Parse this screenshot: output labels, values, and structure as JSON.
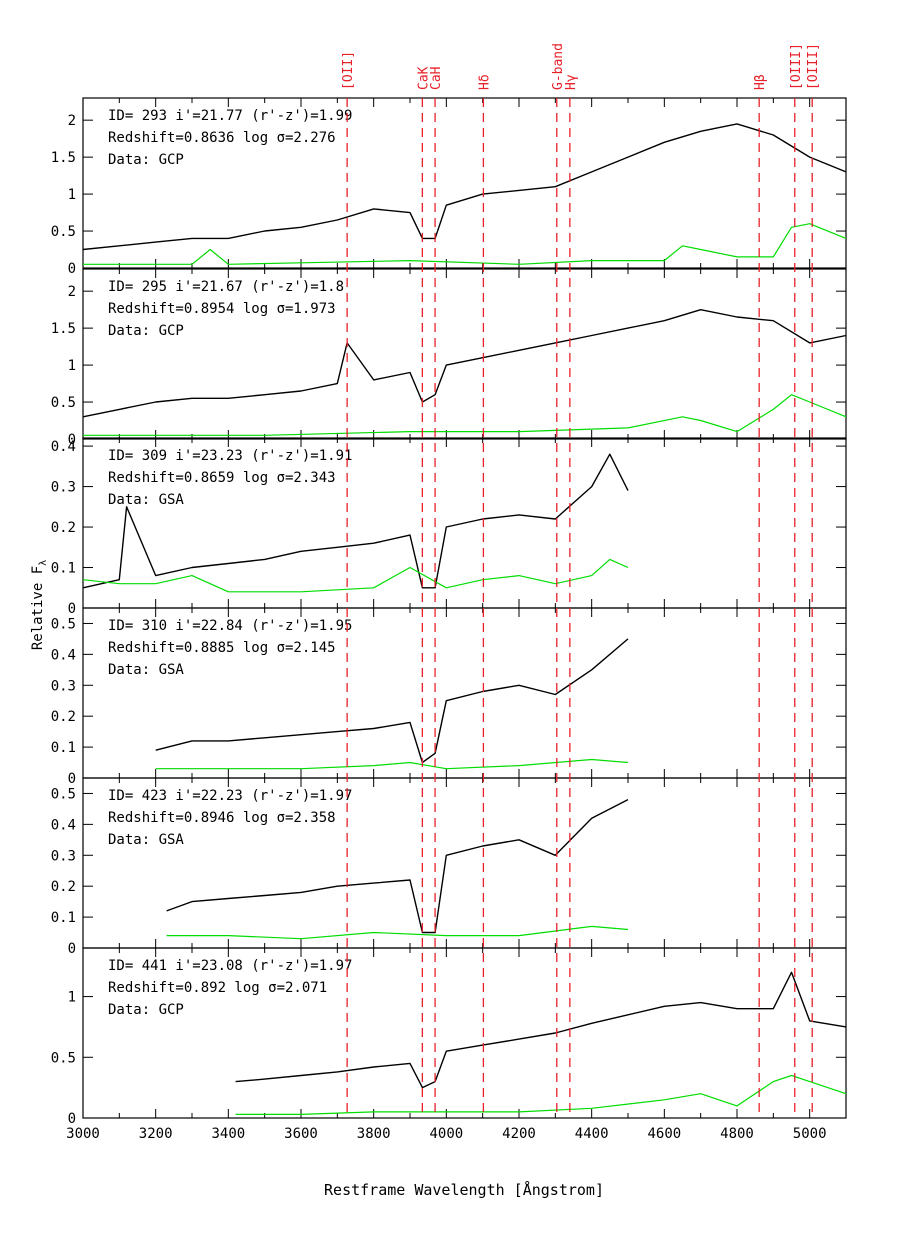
{
  "chart_data": {
    "type": "line",
    "xlabel": "Restframe Wavelength [Ångstrom]",
    "ylabel": "Relative F",
    "ylabel_sub": "λ",
    "xlim": [
      3000,
      5100
    ],
    "x_ticks": [
      3000,
      3200,
      3400,
      3600,
      3800,
      4000,
      4200,
      4400,
      4600,
      4800,
      5000
    ],
    "line_markers": [
      {
        "label": "[OII]",
        "wavelength": 3727
      },
      {
        "label": "CaK",
        "wavelength": 3934
      },
      {
        "label": "CaH",
        "wavelength": 3969
      },
      {
        "label": "Hδ",
        "wavelength": 4102
      },
      {
        "label": "G-band",
        "wavelength": 4304
      },
      {
        "label": "Hγ",
        "wavelength": 4340
      },
      {
        "label": "Hβ",
        "wavelength": 4861
      },
      {
        "label": "[OIII]",
        "wavelength": 4959
      },
      {
        "label": "[OIII]",
        "wavelength": 5007
      }
    ],
    "colors": {
      "spectrum": "#000000",
      "noise": "#00dd00",
      "marker": "#e8202a",
      "sky": "#3333ff"
    },
    "panels": [
      {
        "info": [
          "ID= 293   i'=21.77  (r'-z')=1.99",
          "Redshift=0.8636   log σ=2.276",
          "Data: GCP"
        ],
        "ylim": [
          0,
          2.3
        ],
        "yticks": [
          0,
          0.5,
          1,
          1.5,
          2
        ],
        "ytick_labels": [
          "0",
          "0.5",
          "1",
          "1.5",
          "2"
        ],
        "series": [
          {
            "role": "spectrum",
            "x": [
              3000,
              3100,
              3200,
              3300,
              3400,
              3500,
              3600,
              3700,
              3800,
              3900,
              3934,
              3969,
              4000,
              4100,
              4200,
              4300,
              4400,
              4500,
              4600,
              4700,
              4800,
              4900,
              5000,
              5100
            ],
            "y": [
              0.25,
              0.3,
              0.35,
              0.4,
              0.4,
              0.5,
              0.55,
              0.65,
              0.8,
              0.75,
              0.4,
              0.4,
              0.85,
              1.0,
              1.05,
              1.1,
              1.3,
              1.5,
              1.7,
              1.85,
              1.95,
              1.8,
              1.5,
              1.3
            ]
          },
          {
            "role": "noise",
            "x": [
              3000,
              3300,
              3350,
              3400,
              3600,
              3900,
              4200,
              4400,
              4600,
              4650,
              4700,
              4800,
              4900,
              4950,
              5000,
              5100
            ],
            "y": [
              0.05,
              0.05,
              0.25,
              0.05,
              0.07,
              0.1,
              0.05,
              0.1,
              0.1,
              0.3,
              0.25,
              0.15,
              0.15,
              0.55,
              0.6,
              0.4
            ]
          }
        ]
      },
      {
        "info": [
          "ID= 295   i'=21.67  (r'-z')=1.8",
          "Redshift=0.8954   log σ=1.973",
          "Data: GCP"
        ],
        "ylim": [
          0,
          2.3
        ],
        "yticks": [
          0,
          0.5,
          1,
          1.5,
          2
        ],
        "ytick_labels": [
          "0",
          "0.5",
          "1",
          "1.5",
          "2"
        ],
        "series": [
          {
            "role": "spectrum",
            "x": [
              3000,
              3100,
              3200,
              3300,
              3400,
              3500,
              3600,
              3700,
              3727,
              3800,
              3900,
              3934,
              3969,
              4000,
              4100,
              4200,
              4300,
              4400,
              4500,
              4600,
              4700,
              4800,
              4900,
              5000,
              5100
            ],
            "y": [
              0.3,
              0.4,
              0.5,
              0.55,
              0.55,
              0.6,
              0.65,
              0.75,
              1.3,
              0.8,
              0.9,
              0.5,
              0.6,
              1.0,
              1.1,
              1.2,
              1.3,
              1.4,
              1.5,
              1.6,
              1.75,
              1.65,
              1.6,
              1.3,
              1.4
            ]
          },
          {
            "role": "noise",
            "x": [
              3000,
              3500,
              3900,
              4200,
              4500,
              4650,
              4700,
              4800,
              4900,
              4950,
              5000,
              5100
            ],
            "y": [
              0.05,
              0.05,
              0.1,
              0.1,
              0.15,
              0.3,
              0.25,
              0.1,
              0.4,
              0.6,
              0.5,
              0.3
            ]
          }
        ]
      },
      {
        "info": [
          "ID= 309   i'=23.23  (r'-z')=1.91",
          "Redshift=0.8659   log σ=2.343",
          "Data: GSA"
        ],
        "ylim": [
          0,
          0.42
        ],
        "yticks": [
          0,
          0.1,
          0.2,
          0.3,
          0.4
        ],
        "ytick_labels": [
          "0",
          "0.1",
          "0.2",
          "0.3",
          "0.4"
        ],
        "series": [
          {
            "role": "spectrum",
            "x": [
              3000,
              3100,
              3120,
              3200,
              3300,
              3400,
              3500,
              3600,
              3700,
              3800,
              3900,
              3934,
              3969,
              4000,
              4100,
              4200,
              4300,
              4400,
              4450,
              4500
            ],
            "y": [
              0.05,
              0.07,
              0.25,
              0.08,
              0.1,
              0.11,
              0.12,
              0.14,
              0.15,
              0.16,
              0.18,
              0.05,
              0.05,
              0.2,
              0.22,
              0.23,
              0.22,
              0.3,
              0.38,
              0.29
            ]
          },
          {
            "role": "noise",
            "x": [
              3000,
              3100,
              3200,
              3300,
              3400,
              3600,
              3800,
              3900,
              4000,
              4100,
              4200,
              4300,
              4400,
              4450,
              4500
            ],
            "y": [
              0.07,
              0.06,
              0.06,
              0.08,
              0.04,
              0.04,
              0.05,
              0.1,
              0.05,
              0.07,
              0.08,
              0.06,
              0.08,
              0.12,
              0.1
            ]
          }
        ]
      },
      {
        "info": [
          "ID= 310   i'=22.84  (r'-z')=1.95",
          "Redshift=0.8885   log σ=2.145",
          "Data: GSA"
        ],
        "ylim": [
          0,
          0.55
        ],
        "yticks": [
          0,
          0.1,
          0.2,
          0.3,
          0.4,
          0.5
        ],
        "ytick_labels": [
          "0",
          "0.1",
          "0.2",
          "0.3",
          "0.4",
          "0.5"
        ],
        "series": [
          {
            "role": "spectrum",
            "x": [
              3200,
              3300,
              3400,
              3500,
              3600,
              3700,
              3800,
              3900,
              3934,
              3969,
              4000,
              4100,
              4200,
              4300,
              4400,
              4500
            ],
            "y": [
              0.09,
              0.12,
              0.12,
              0.13,
              0.14,
              0.15,
              0.16,
              0.18,
              0.05,
              0.08,
              0.25,
              0.28,
              0.3,
              0.27,
              0.35,
              0.45
            ]
          },
          {
            "role": "noise",
            "x": [
              3200,
              3400,
              3600,
              3800,
              3900,
              4000,
              4200,
              4400,
              4500
            ],
            "y": [
              0.03,
              0.03,
              0.03,
              0.04,
              0.05,
              0.03,
              0.04,
              0.06,
              0.05
            ]
          }
        ]
      },
      {
        "info": [
          "ID= 423   i'=22.23  (r'-z')=1.97",
          "Redshift=0.8946   log σ=2.358",
          "Data: GSA"
        ],
        "ylim": [
          0,
          0.55
        ],
        "yticks": [
          0,
          0.1,
          0.2,
          0.3,
          0.4,
          0.5
        ],
        "ytick_labels": [
          "0",
          "0.1",
          "0.2",
          "0.3",
          "0.4",
          "0.5"
        ],
        "series": [
          {
            "role": "spectrum",
            "x": [
              3230,
              3300,
              3400,
              3500,
              3600,
              3700,
              3800,
              3900,
              3934,
              3969,
              4000,
              4100,
              4200,
              4300,
              4400,
              4500
            ],
            "y": [
              0.12,
              0.15,
              0.16,
              0.17,
              0.18,
              0.2,
              0.21,
              0.22,
              0.05,
              0.05,
              0.3,
              0.33,
              0.35,
              0.3,
              0.42,
              0.48
            ]
          },
          {
            "role": "noise",
            "x": [
              3230,
              3400,
              3600,
              3800,
              4000,
              4200,
              4400,
              4500
            ],
            "y": [
              0.04,
              0.04,
              0.03,
              0.05,
              0.04,
              0.04,
              0.07,
              0.06
            ]
          }
        ]
      },
      {
        "info": [
          "ID= 441   i'=23.08  (r'-z')=1.97",
          "Redshift=0.892    log σ=2.071",
          "Data: GCP"
        ],
        "ylim": [
          0,
          1.4
        ],
        "yticks": [
          0,
          0.5,
          1
        ],
        "ytick_labels": [
          "0",
          "0.5",
          "1"
        ],
        "series": [
          {
            "role": "spectrum",
            "x": [
              3420,
              3500,
              3600,
              3700,
              3800,
              3900,
              3934,
              3969,
              4000,
              4100,
              4200,
              4300,
              4400,
              4500,
              4600,
              4700,
              4800,
              4900,
              4950,
              5000,
              5100
            ],
            "y": [
              0.3,
              0.32,
              0.35,
              0.38,
              0.42,
              0.45,
              0.25,
              0.3,
              0.55,
              0.6,
              0.65,
              0.7,
              0.78,
              0.85,
              0.92,
              0.95,
              0.9,
              0.9,
              1.2,
              0.8,
              0.75
            ]
          },
          {
            "role": "noise",
            "x": [
              3420,
              3600,
              3800,
              4000,
              4200,
              4400,
              4600,
              4700,
              4800,
              4900,
              4950,
              5000,
              5100
            ],
            "y": [
              0.03,
              0.03,
              0.05,
              0.05,
              0.05,
              0.08,
              0.15,
              0.2,
              0.1,
              0.3,
              0.35,
              0.3,
              0.2
            ]
          }
        ]
      }
    ]
  }
}
